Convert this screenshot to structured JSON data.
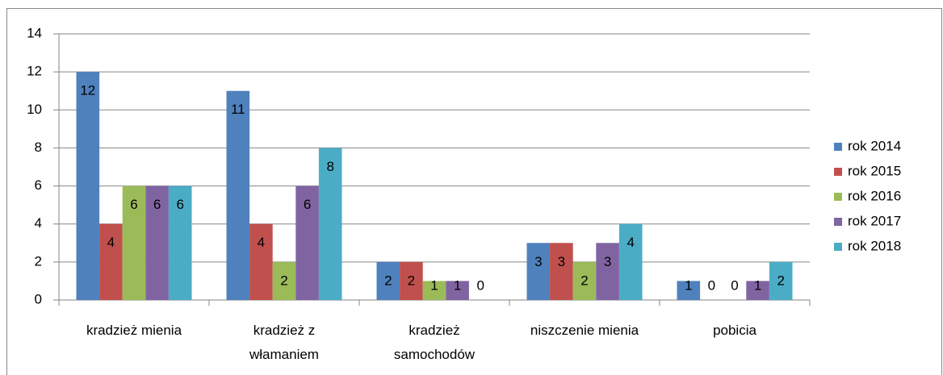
{
  "chart_data": {
    "type": "bar",
    "categories": [
      "kradzież mienia",
      "kradzież z włamaniem",
      "kradzież samochodów",
      "niszczenie mienia",
      "pobicia"
    ],
    "series": [
      {
        "name": "rok 2014",
        "color": "#4f81bd",
        "values": [
          12,
          11,
          2,
          3,
          1
        ]
      },
      {
        "name": "rok 2015",
        "color": "#c0504d",
        "values": [
          4,
          4,
          2,
          3,
          0
        ]
      },
      {
        "name": "rok 2016",
        "color": "#9bbb59",
        "values": [
          6,
          2,
          1,
          2,
          0
        ]
      },
      {
        "name": "rok 2017",
        "color": "#8064a2",
        "values": [
          6,
          6,
          1,
          3,
          1
        ]
      },
      {
        "name": "rok 2018",
        "color": "#4bacc6",
        "values": [
          6,
          8,
          0,
          4,
          2
        ]
      }
    ],
    "ylim": [
      0,
      14
    ],
    "yticks": [
      0,
      2,
      4,
      6,
      8,
      10,
      12,
      14
    ],
    "grid": true,
    "legend": "right"
  }
}
